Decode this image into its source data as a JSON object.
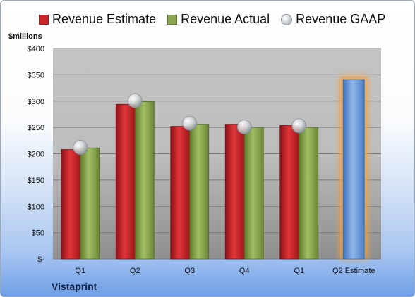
{
  "legend": {
    "estimate": "Revenue Estimate",
    "actual": "Revenue Actual",
    "gaap": "Revenue GAAP"
  },
  "units_label": "$millions",
  "company": "Vistaprint",
  "colors": {
    "estimate": "#c8262a",
    "actual": "#8aa64e",
    "forecast": "#6fa0dc",
    "forecast_glow": "#f0a24a",
    "plot_bg": "#cccccc"
  },
  "chart_data": {
    "type": "bar",
    "categories": [
      "Q1",
      "Q2",
      "Q3",
      "Q4",
      "Q1",
      "Q2 Estimate"
    ],
    "ylabel": "$millions",
    "ylim": [
      0,
      400
    ],
    "yticks": [
      "$-",
      "$50",
      "$100",
      "$150",
      "$200",
      "$250",
      "$300",
      "$350",
      "$400"
    ],
    "ytick_values": [
      0,
      50,
      100,
      150,
      200,
      250,
      300,
      350,
      400
    ],
    "grid": true,
    "legend_position": "top",
    "series": [
      {
        "name": "Revenue Estimate",
        "values": [
          208,
          294,
          252,
          256,
          254,
          null
        ]
      },
      {
        "name": "Revenue Actual",
        "values": [
          211,
          299,
          256,
          250,
          250,
          null
        ]
      },
      {
        "name": "Revenue GAAP",
        "values": [
          212,
          301,
          258,
          251,
          253,
          null
        ]
      }
    ],
    "forecast": {
      "category": "Q2 Estimate",
      "value": 341
    }
  }
}
